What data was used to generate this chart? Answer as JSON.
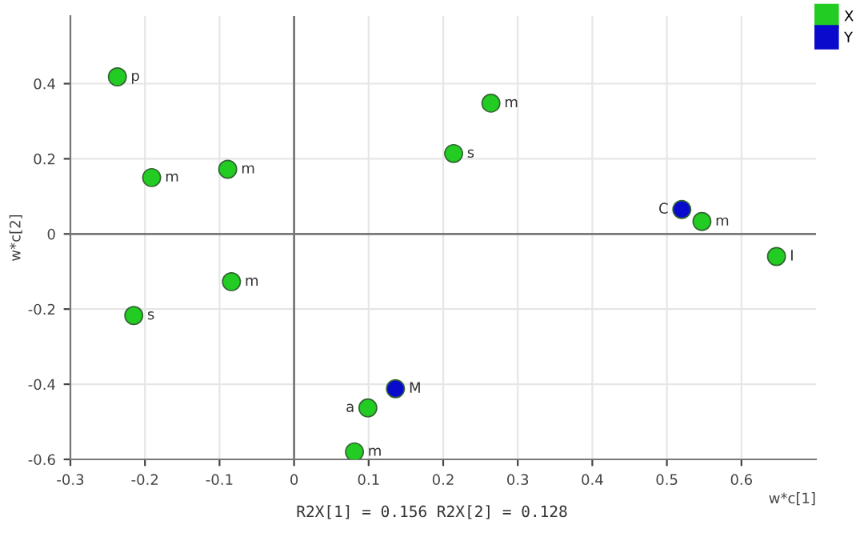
{
  "chart_data": {
    "type": "scatter",
    "xlabel": "w*c[1]",
    "ylabel": "w*c[2]",
    "series": [
      {
        "name": "X",
        "color": "#22cc22",
        "x": [
          -0.237,
          -0.191,
          -0.089,
          0.214,
          0.264,
          0.547,
          0.647,
          -0.084,
          -0.215,
          0.099,
          0.081
        ],
        "values": [
          0.418,
          0.15,
          0.172,
          0.214,
          0.348,
          0.033,
          -0.06,
          -0.127,
          -0.217,
          -0.463,
          -0.58
        ]
      },
      {
        "name": "Y",
        "color": "#0a0acc",
        "x": [
          0.52,
          0.136
        ],
        "values": [
          0.065,
          -0.412
        ]
      }
    ],
    "annotations": [
      {
        "text": "p",
        "x": -0.237,
        "y": 0.418
      },
      {
        "text": "m",
        "x": -0.191,
        "y": 0.15
      },
      {
        "text": "m",
        "x": -0.089,
        "y": 0.172
      },
      {
        "text": "s",
        "x": 0.214,
        "y": 0.214
      },
      {
        "text": "m",
        "x": 0.264,
        "y": 0.348
      },
      {
        "text": "m",
        "x": 0.547,
        "y": 0.033
      },
      {
        "text": "I",
        "x": 0.647,
        "y": -0.06
      },
      {
        "text": "m",
        "x": -0.084,
        "y": -0.127
      },
      {
        "text": "s",
        "x": -0.215,
        "y": -0.217
      },
      {
        "text": "a",
        "x": 0.099,
        "y": -0.463
      },
      {
        "text": "m",
        "x": 0.081,
        "y": -0.58
      },
      {
        "text": "C",
        "x": 0.52,
        "y": 0.065
      },
      {
        "text": "M",
        "x": 0.136,
        "y": -0.412
      },
      "R2X[1] = 0.156 R2X[2] = 0.128"
    ],
    "xlim": [
      -0.3,
      0.7
    ],
    "ylim": [
      -0.6,
      0.58
    ],
    "xticks": [
      -0.3,
      -0.2,
      -0.1,
      0,
      0.1,
      0.2,
      0.3,
      0.4,
      0.5,
      0.6
    ],
    "yticks": [
      -0.6,
      -0.4,
      -0.2,
      0,
      0.2,
      0.4
    ],
    "grid": true,
    "legend": "top right",
    "marker": "circle"
  }
}
